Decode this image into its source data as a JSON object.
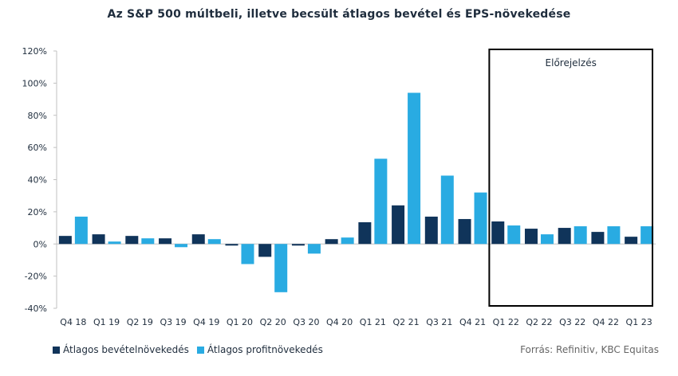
{
  "chart_data": {
    "type": "bar",
    "title": "Az S&P 500 múltbeli, illetve becsült átlagos bevétel és EPS-növekedése",
    "categories": [
      "Q4 18",
      "Q1 19",
      "Q2 19",
      "Q3 19",
      "Q4 19",
      "Q1 20",
      "Q2 20",
      "Q3 20",
      "Q4 20",
      "Q1 21",
      "Q2 21",
      "Q3 21",
      "Q4 21",
      "Q1 22",
      "Q2 22",
      "Q3 22",
      "Q4 22",
      "Q1 23"
    ],
    "series": [
      {
        "name": "Átlagos bevételnövekedés",
        "color": "#10345a",
        "values": [
          5,
          6,
          5,
          3.5,
          6,
          -1,
          -8,
          -1,
          3,
          13.5,
          24,
          17,
          15.5,
          14,
          9.5,
          10,
          7.5,
          4.5
        ]
      },
      {
        "name": "Átlagos profitnövekedés",
        "color": "#29abe2",
        "values": [
          17,
          1.5,
          3.5,
          -2,
          3,
          -12.5,
          -30,
          -6,
          4,
          53,
          94,
          42.5,
          32,
          11.5,
          6,
          11,
          11,
          11
        ]
      }
    ],
    "y_ticks": [
      "120%",
      "100%",
      "80%",
      "60%",
      "40%",
      "20%",
      "0%",
      "-20%",
      "-40%"
    ],
    "ylim": [
      -40,
      120
    ],
    "forecast_box": {
      "label": "Előrejelzés",
      "start_category": "Q1 22",
      "end_category": "Q1 23"
    },
    "legend_position": "bottom-left",
    "grid": false
  },
  "source": "Forrás: Refinitiv, KBC Equitas"
}
